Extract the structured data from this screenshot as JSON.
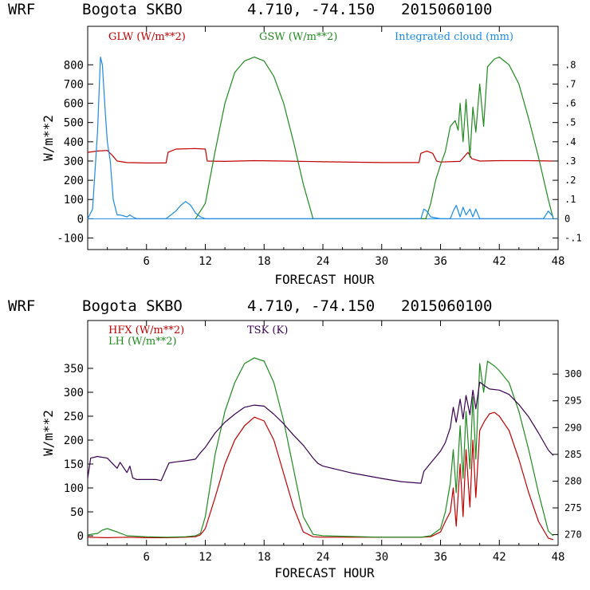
{
  "colors": {
    "red": "#c00000",
    "green": "#1f8a1f",
    "blue": "#1a8ae6",
    "purple": "#3a0050",
    "axis": "#000000"
  },
  "chart_data": [
    {
      "type": "line",
      "header": {
        "model": "WRF",
        "station": "Bogota SKBO",
        "coords": "4.710, -74.150",
        "run": "2015060100"
      },
      "xlabel": "FORECAST HOUR",
      "ylabel": "W/m**2",
      "xlim": [
        0,
        48
      ],
      "ylim": [
        -160,
        1000
      ],
      "y2lim": [
        -0.16,
        1.0
      ],
      "x_ticks": [
        "6",
        "12",
        "18",
        "24",
        "30",
        "36",
        "42",
        "48"
      ],
      "y_ticks": [
        "-100",
        "0",
        "100",
        "200",
        "300",
        "400",
        "500",
        "600",
        "700",
        "800"
      ],
      "y2_ticks": [
        "-.1",
        "0",
        ".1",
        ".2",
        ".3",
        ".4",
        ".5",
        ".6",
        ".7",
        ".8"
      ],
      "legend": [
        "GLW (W/m**2)",
        "GSW (W/m**2)",
        "Integrated cloud (mm)"
      ],
      "series": [
        {
          "name": "GLW (W/m**2)",
          "color": "red",
          "axis": "left",
          "x": [
            0,
            1,
            2,
            2.5,
            3,
            4,
            6,
            8,
            8.2,
            9,
            11,
            12,
            12.2,
            14,
            17,
            20,
            24,
            30,
            33.8,
            34,
            34.6,
            35.2,
            35.6,
            36,
            38,
            38.8,
            39.2,
            40,
            42,
            45,
            47.5
          ],
          "y": [
            345,
            352,
            355,
            330,
            300,
            292,
            290,
            290,
            345,
            362,
            365,
            362,
            300,
            298,
            302,
            300,
            296,
            292,
            292,
            340,
            352,
            340,
            300,
            295,
            298,
            345,
            312,
            300,
            302,
            302,
            300
          ]
        },
        {
          "name": "GSW (W/m**2)",
          "color": "green",
          "axis": "left",
          "x": [
            11,
            12,
            13,
            14,
            15,
            16,
            17,
            18,
            19,
            20,
            21,
            22,
            23,
            34.5,
            35,
            35.5,
            36,
            36.5,
            37,
            37.5,
            37.8,
            38,
            38.3,
            38.6,
            39,
            39.3,
            39.6,
            40,
            40.4,
            40.8,
            41.5,
            42,
            43,
            44,
            45,
            46,
            47,
            47.5
          ],
          "y": [
            0,
            80,
            350,
            600,
            760,
            820,
            840,
            820,
            740,
            600,
            400,
            180,
            0,
            0,
            80,
            200,
            280,
            350,
            480,
            510,
            460,
            600,
            400,
            620,
            320,
            580,
            450,
            700,
            480,
            790,
            830,
            840,
            800,
            700,
            520,
            320,
            100,
            0
          ]
        },
        {
          "name": "Integrated cloud (mm)",
          "color": "blue",
          "axis": "right",
          "x": [
            0,
            0.5,
            1,
            1.3,
            1.5,
            1.8,
            2,
            2.3,
            2.6,
            3,
            3.3,
            4,
            4.3,
            4.6,
            5,
            8,
            9,
            9.5,
            10,
            10.5,
            11,
            11.5,
            12,
            34,
            34.3,
            34.6,
            35,
            36,
            37,
            37.3,
            37.6,
            38,
            38.3,
            38.6,
            39,
            39.3,
            39.6,
            40,
            46.5,
            47,
            47.5
          ],
          "y": [
            0,
            0.05,
            0.45,
            0.84,
            0.8,
            0.55,
            0.4,
            0.3,
            0.1,
            0.02,
            0.02,
            0.01,
            0.02,
            0.01,
            0,
            0,
            0.04,
            0.07,
            0.09,
            0.07,
            0.03,
            0.01,
            0,
            0,
            0.05,
            0.04,
            0.01,
            0,
            0,
            0.04,
            0.07,
            0.01,
            0.06,
            0.02,
            0.05,
            0.01,
            0.05,
            0,
            0,
            0.04,
            0.01
          ]
        }
      ]
    },
    {
      "type": "line",
      "header": {
        "model": "WRF",
        "station": "Bogota SKBO",
        "coords": "4.710, -74.150",
        "run": "2015060100"
      },
      "xlabel": "FORECAST HOUR",
      "ylabel": "W/m**2",
      "xlim": [
        0,
        48
      ],
      "ylim": [
        -20,
        450
      ],
      "y2lim": [
        268,
        310
      ],
      "x_ticks": [
        "6",
        "12",
        "18",
        "24",
        "30",
        "36",
        "42",
        "48"
      ],
      "y_ticks": [
        "0",
        "50",
        "100",
        "150",
        "200",
        "250",
        "300",
        "350"
      ],
      "y2_ticks": [
        "270",
        "275",
        "280",
        "285",
        "290",
        "295",
        "300"
      ],
      "legend": [
        "HFX (W/m**2)",
        "LH (W/m**2)",
        "TSK (K)"
      ],
      "series": [
        {
          "name": "HFX (W/m**2)",
          "color": "red",
          "axis": "left",
          "x": [
            0,
            2,
            4,
            6,
            8,
            10,
            11,
            11.5,
            12,
            13,
            14,
            15,
            16,
            17,
            18,
            19,
            20,
            21,
            22,
            23,
            24,
            30,
            34,
            35,
            36,
            36.5,
            37,
            37.3,
            37.6,
            38,
            38.3,
            38.6,
            39,
            39.3,
            39.6,
            40,
            40.5,
            41,
            41.5,
            42,
            43,
            44,
            45,
            46,
            47,
            47.5
          ],
          "y": [
            -3,
            -4,
            -3,
            -4,
            -4,
            -3,
            -2,
            2,
            15,
            80,
            150,
            200,
            230,
            248,
            240,
            200,
            130,
            60,
            8,
            -2,
            -3,
            -3,
            -3,
            -2,
            8,
            30,
            50,
            100,
            20,
            150,
            40,
            180,
            60,
            200,
            80,
            220,
            240,
            255,
            258,
            250,
            220,
            160,
            90,
            30,
            -5,
            -8
          ]
        },
        {
          "name": "LH (W/m**2)",
          "color": "green",
          "axis": "left",
          "x": [
            0,
            1,
            1.5,
            2,
            3,
            4,
            6,
            8,
            10,
            11,
            11.5,
            12,
            13,
            14,
            15,
            16,
            17,
            18,
            19,
            20,
            21,
            22,
            23,
            24,
            30,
            34,
            35,
            36,
            36.5,
            37,
            37.3,
            37.6,
            38,
            38.3,
            38.6,
            39,
            39.3,
            39.6,
            40,
            40.4,
            40.8,
            41.5,
            42,
            43,
            44,
            45,
            46,
            47,
            47.5
          ],
          "y": [
            2,
            5,
            12,
            15,
            8,
            0,
            -2,
            -3,
            -2,
            0,
            5,
            40,
            170,
            260,
            320,
            360,
            372,
            365,
            320,
            240,
            140,
            40,
            3,
            0,
            -3,
            -3,
            0,
            15,
            50,
            110,
            180,
            90,
            230,
            120,
            260,
            140,
            290,
            160,
            360,
            300,
            365,
            355,
            345,
            320,
            260,
            180,
            90,
            10,
            0
          ]
        },
        {
          "name": "TSK (K)",
          "color": "purple",
          "axis": "right",
          "x": [
            0,
            0.3,
            1,
            2,
            3,
            3.3,
            4,
            4.3,
            4.6,
            5,
            6,
            7,
            7.5,
            8,
            8.3,
            9,
            10,
            11,
            11.5,
            12,
            13,
            14,
            15,
            16,
            17,
            18,
            19,
            20,
            21,
            22,
            23,
            23.5,
            24,
            27,
            30,
            32,
            34,
            34.3,
            35,
            35.5,
            36,
            36.5,
            37,
            37.3,
            37.6,
            38,
            38.3,
            38.6,
            39,
            39.3,
            39.6,
            40,
            40.5,
            41,
            42,
            43,
            44,
            45,
            46,
            47,
            47.5
          ],
          "y": [
            280.5,
            284.3,
            284.6,
            284.3,
            282.4,
            283.5,
            281.6,
            282.8,
            280.6,
            280.3,
            280.3,
            280.3,
            280.1,
            282.2,
            283.4,
            283.6,
            283.8,
            284.1,
            285.3,
            286.3,
            289.0,
            291.0,
            292.5,
            293.8,
            294.2,
            294.0,
            292.5,
            290.7,
            288.6,
            286.7,
            284.3,
            283.3,
            282.8,
            281.5,
            280.5,
            279.9,
            279.6,
            281.8,
            283.4,
            284.5,
            285.6,
            287.2,
            290.0,
            293.8,
            291.0,
            295.3,
            291.6,
            296.0,
            292.4,
            297.0,
            293.5,
            298.5,
            297.8,
            297.2,
            297.0,
            296.2,
            294.3,
            292.0,
            289.0,
            285.8,
            284.8
          ]
        }
      ]
    }
  ]
}
